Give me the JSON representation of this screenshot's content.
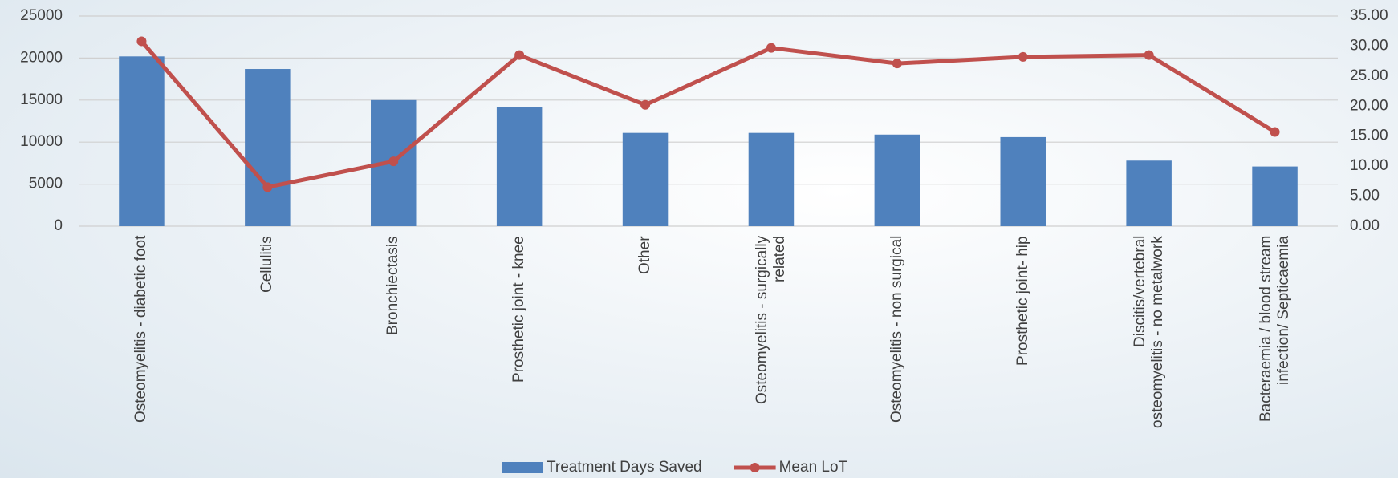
{
  "chart_data": {
    "type": "bar-line",
    "categories": [
      "Osteomyelitis - diabetic foot",
      "Cellulitis",
      "Bronchiectasis",
      "Prosthetic joint - knee",
      "Other",
      "Osteomyelitis - surgically related",
      "Osteomyelitis - non surgical",
      "Prosthetic joint- hip",
      "Discitis/vertebral osteomyelitis - no metalwork",
      "Bacteraemia / blood stream infection/ Septicaemia"
    ],
    "series": [
      {
        "name": "Treatment Days Saved",
        "color": "#4f81bd",
        "type": "bar",
        "values": [
          20200,
          18700,
          15000,
          14200,
          11100,
          11100,
          10900,
          10600,
          7800,
          7100
        ]
      },
      {
        "name": "Mean LoT",
        "color": "#c0504d",
        "type": "line",
        "axis": "y2",
        "values": [
          30.8,
          6.5,
          10.8,
          28.5,
          20.2,
          29.7,
          27.1,
          28.2,
          28.5,
          15.7
        ]
      }
    ],
    "ylim": [
      0,
      25000
    ],
    "yticks": [
      0,
      5000,
      10000,
      15000,
      20000,
      25000
    ],
    "y2lim": [
      0,
      35
    ],
    "y2ticks": [
      {
        "value": 0,
        "label": "0.00"
      },
      {
        "value": 5,
        "label": "5.00"
      },
      {
        "value": 10,
        "label": "10.00"
      },
      {
        "value": 15,
        "label": "15.00"
      },
      {
        "value": 20,
        "label": "20.00"
      },
      {
        "value": 25,
        "label": "25.00"
      },
      {
        "value": 30,
        "label": "30.00"
      },
      {
        "value": 35,
        "label": "35.00"
      }
    ],
    "grid": true
  }
}
